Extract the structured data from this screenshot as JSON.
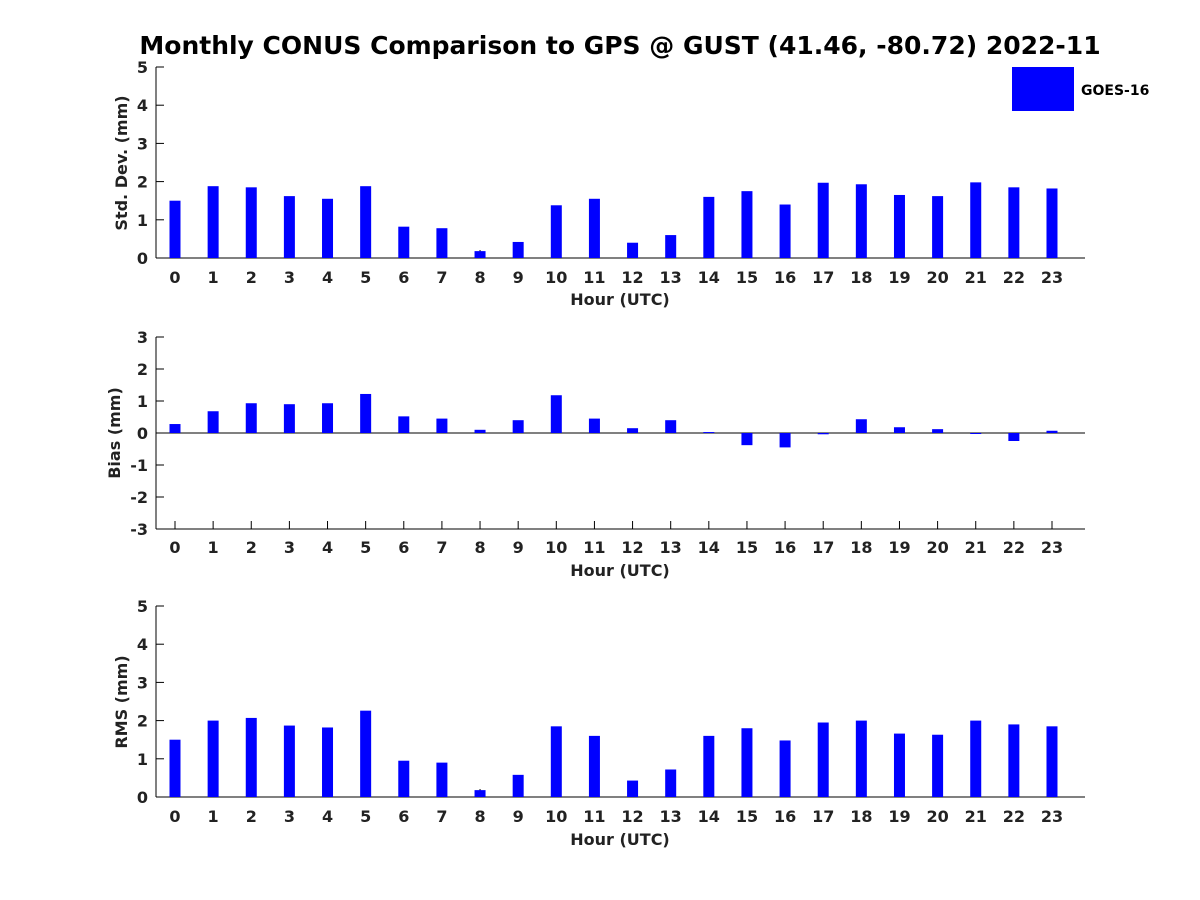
{
  "title": "Monthly CONUS Comparison to GPS @ GUST (41.46, -80.72) 2022-11",
  "legend": {
    "label": "GOES-16",
    "color": "#0000ff"
  },
  "chart_data": [
    {
      "type": "bar",
      "name": "std-dev",
      "categories": [
        "0",
        "1",
        "2",
        "3",
        "4",
        "5",
        "6",
        "7",
        "8",
        "9",
        "10",
        "11",
        "12",
        "13",
        "14",
        "15",
        "16",
        "17",
        "18",
        "19",
        "20",
        "21",
        "22",
        "23"
      ],
      "values": [
        1.5,
        1.88,
        1.85,
        1.62,
        1.55,
        1.88,
        0.82,
        0.78,
        0.18,
        0.42,
        1.38,
        1.55,
        0.4,
        0.6,
        1.6,
        1.75,
        1.4,
        1.97,
        1.93,
        1.65,
        1.62,
        1.98,
        1.85,
        1.82
      ],
      "series_name": "GOES-16",
      "xlabel": "Hour (UTC)",
      "ylabel": "Std. Dev. (mm)",
      "ylim": [
        0,
        5
      ],
      "yticks": [
        "0",
        "1",
        "2",
        "3",
        "4",
        "5"
      ]
    },
    {
      "type": "bar",
      "name": "bias",
      "categories": [
        "0",
        "1",
        "2",
        "3",
        "4",
        "5",
        "6",
        "7",
        "8",
        "9",
        "10",
        "11",
        "12",
        "13",
        "14",
        "15",
        "16",
        "17",
        "18",
        "19",
        "20",
        "21",
        "22",
        "23"
      ],
      "values": [
        0.28,
        0.68,
        0.93,
        0.9,
        0.93,
        1.22,
        0.52,
        0.45,
        0.1,
        0.4,
        1.18,
        0.45,
        0.15,
        0.4,
        0.03,
        -0.38,
        -0.45,
        -0.04,
        0.43,
        0.18,
        0.12,
        -0.03,
        -0.25,
        0.07
      ],
      "series_name": "GOES-16",
      "xlabel": "Hour (UTC)",
      "ylabel": "Bias (mm)",
      "ylim": [
        -3,
        3
      ],
      "yticks": [
        "-3",
        "-2",
        "-1",
        "0",
        "1",
        "2",
        "3"
      ]
    },
    {
      "type": "bar",
      "name": "rms",
      "categories": [
        "0",
        "1",
        "2",
        "3",
        "4",
        "5",
        "6",
        "7",
        "8",
        "9",
        "10",
        "11",
        "12",
        "13",
        "14",
        "15",
        "16",
        "17",
        "18",
        "19",
        "20",
        "21",
        "22",
        "23"
      ],
      "values": [
        1.5,
        2.0,
        2.07,
        1.87,
        1.82,
        2.26,
        0.95,
        0.9,
        0.18,
        0.58,
        1.85,
        1.6,
        0.43,
        0.72,
        1.6,
        1.8,
        1.48,
        1.95,
        2.0,
        1.66,
        1.63,
        2.0,
        1.9,
        1.85
      ],
      "series_name": "GOES-16",
      "xlabel": "Hour (UTC)",
      "ylabel": "RMS (mm)",
      "ylim": [
        0,
        5
      ],
      "yticks": [
        "0",
        "1",
        "2",
        "3",
        "4",
        "5"
      ]
    }
  ]
}
